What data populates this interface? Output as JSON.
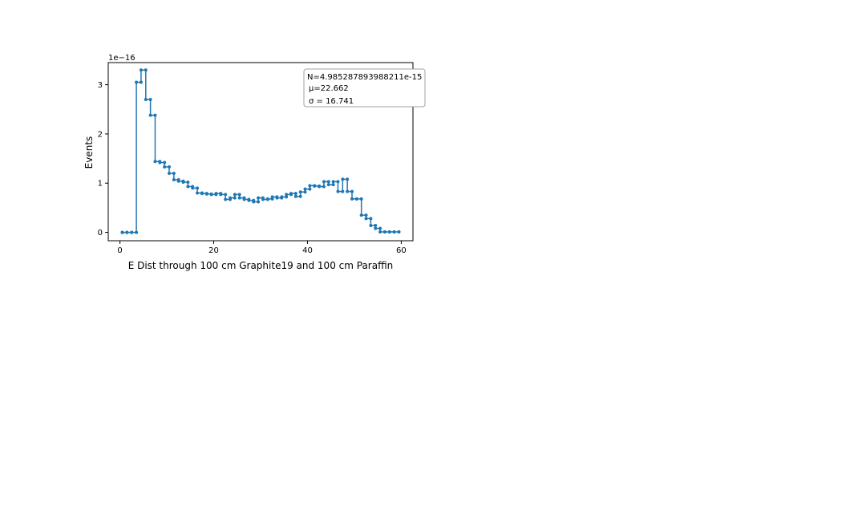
{
  "chart_data": {
    "type": "line",
    "drawstyle": "steps",
    "marker": "point",
    "title": "",
    "xlabel": "E Dist through 100 cm Graphite19 and 100 cm Paraffin",
    "ylabel": "Events",
    "y_offset_label": "1e−16",
    "xlim": [
      -2.5,
      62.5
    ],
    "ylim": [
      -0.17,
      3.45
    ],
    "x_ticks": [
      0,
      20,
      40,
      60
    ],
    "x_tick_labels": [
      "0",
      "20",
      "40",
      "60"
    ],
    "y_ticks": [
      0,
      1,
      2,
      3
    ],
    "y_tick_labels": [
      "0",
      "1",
      "2",
      "3"
    ],
    "grid": false,
    "series_color": "#1f77b4",
    "series": [
      {
        "x": [
          0.5,
          1.5,
          2.5,
          3.5,
          4.5,
          5.5,
          6.5,
          7.5,
          8.5,
          9.5,
          10.5,
          11.5,
          12.5,
          13.5,
          14.5,
          15.5,
          16.5,
          17.5,
          18.5,
          19.5,
          20.5,
          21.5,
          22.5,
          23.5,
          24.5,
          25.5,
          26.5,
          27.5,
          28.5,
          29.5,
          30.5,
          31.5,
          32.5,
          33.5,
          34.5,
          35.5,
          36.5,
          37.5,
          38.5,
          39.5,
          40.5,
          41.5,
          42.5,
          43.5,
          44.5,
          45.5,
          46.5,
          47.5,
          48.5,
          49.5,
          50.5,
          51.5,
          52.5,
          53.5,
          54.5,
          55.5,
          56.5,
          57.5,
          58.5,
          59.5
        ],
        "values": [
          0,
          0,
          0,
          3.05,
          3.3,
          2.7,
          2.38,
          1.44,
          1.42,
          1.33,
          1.2,
          1.07,
          1.04,
          1.02,
          0.93,
          0.9,
          0.8,
          0.79,
          0.78,
          0.77,
          0.79,
          0.77,
          0.67,
          0.7,
          0.77,
          0.7,
          0.67,
          0.65,
          0.62,
          0.7,
          0.67,
          0.68,
          0.72,
          0.7,
          0.72,
          0.77,
          0.79,
          0.73,
          0.82,
          0.88,
          0.95,
          0.94,
          0.93,
          1.03,
          0.97,
          1.03,
          0.83,
          1.08,
          0.83,
          0.68,
          0.68,
          0.35,
          0.28,
          0.14,
          0.08,
          0.01,
          0.01,
          0.01,
          0.01,
          0.01
        ]
      }
    ],
    "stats_box": {
      "placement": "top-right",
      "lines": [
        "N=4.985287893988211e-15",
        "μ=22.662",
        "σ = 16.741"
      ]
    }
  }
}
